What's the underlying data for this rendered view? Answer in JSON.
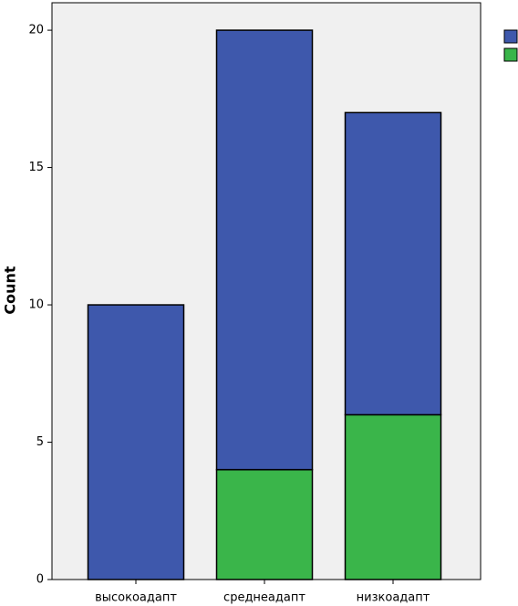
{
  "chart_data": {
    "type": "stacked-bar",
    "y_label": "Count",
    "categories": [
      "высокоадапт",
      "среднеадапт",
      "низкоадапт"
    ],
    "series": [
      {
        "color": "#3ab54a",
        "values": [
          0,
          4,
          6
        ]
      },
      {
        "color": "#3e58ac",
        "values": [
          10,
          16,
          11
        ]
      }
    ],
    "ylim": [
      0,
      21
    ],
    "yticks": [
      0,
      5,
      10,
      15,
      20
    ]
  }
}
